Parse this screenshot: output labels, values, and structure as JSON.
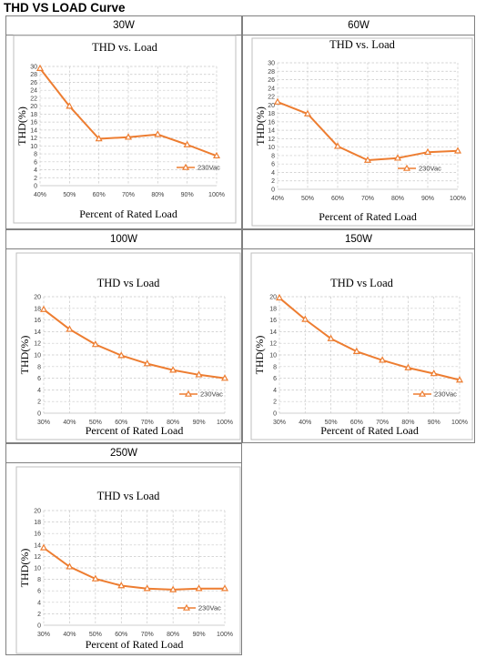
{
  "page_title": "THD VS LOAD Curve",
  "chart_data": [
    {
      "id": "30w",
      "header": "30W",
      "type": "line",
      "title": "THD vs. Load",
      "xlabel": "Percent of Rated Load",
      "ylabel": "THD(%)",
      "categories": [
        "40%",
        "50%",
        "60%",
        "70%",
        "80%",
        "90%",
        "100%"
      ],
      "ylim": [
        0,
        30
      ],
      "ystep": 2,
      "grid": true,
      "legend_position": "right",
      "series": [
        {
          "name": "230Vac",
          "color": "#ED7D31",
          "values": [
            29.5,
            20,
            11.8,
            12.2,
            12.9,
            10.3,
            7.5
          ]
        }
      ]
    },
    {
      "id": "60w",
      "header": "60W",
      "type": "line",
      "title": "THD vs. Load",
      "xlabel": "Percent of Rated Load",
      "ylabel": "THD(%)",
      "categories": [
        "40%",
        "50%",
        "60%",
        "70%",
        "80%",
        "90%",
        "100%"
      ],
      "ylim": [
        0,
        30
      ],
      "ystep": 2,
      "grid": true,
      "legend_position": "right",
      "series": [
        {
          "name": "230Vac",
          "color": "#ED7D31",
          "values": [
            20.7,
            17.9,
            10.2,
            6.9,
            7.4,
            8.8,
            9.1
          ]
        }
      ]
    },
    {
      "id": "100w",
      "header": "100W",
      "type": "line",
      "title": "THD vs Load",
      "xlabel": "Percent of Rated Load",
      "ylabel": "THD(%)",
      "categories": [
        "30%",
        "40%",
        "50%",
        "60%",
        "70%",
        "80%",
        "90%",
        "100%"
      ],
      "ylim": [
        0,
        20
      ],
      "ystep": 2,
      "grid": true,
      "legend_position": "right",
      "series": [
        {
          "name": "230Vac",
          "color": "#ED7D31",
          "values": [
            17.8,
            14.4,
            11.8,
            9.9,
            8.5,
            7.4,
            6.6,
            6.0
          ]
        }
      ]
    },
    {
      "id": "150w",
      "header": "150W",
      "type": "line",
      "title": "THD vs Load",
      "xlabel": "Percent of Rated Load",
      "ylabel": "THD(%)",
      "categories": [
        "30%",
        "40%",
        "50%",
        "60%",
        "70%",
        "80%",
        "90%",
        "100%"
      ],
      "ylim": [
        0,
        20
      ],
      "ystep": 2,
      "grid": true,
      "legend_position": "right",
      "series": [
        {
          "name": "230Vac",
          "color": "#ED7D31",
          "values": [
            19.8,
            16.1,
            12.8,
            10.6,
            9.1,
            7.8,
            6.8,
            5.7
          ]
        }
      ]
    },
    {
      "id": "250w",
      "header": "250W",
      "type": "line",
      "title": "THD vs Load",
      "xlabel": "Percent of Rated Load",
      "ylabel": "THD(%)",
      "categories": [
        "30%",
        "40%",
        "50%",
        "60%",
        "70%",
        "80%",
        "90%",
        "100%"
      ],
      "ylim": [
        0,
        20
      ],
      "ystep": 2,
      "grid": true,
      "legend_position": "right",
      "series": [
        {
          "name": "230Vac",
          "color": "#ED7D31",
          "values": [
            13.5,
            10.2,
            8.1,
            6.9,
            6.4,
            6.2,
            6.4,
            6.4
          ]
        }
      ]
    }
  ]
}
